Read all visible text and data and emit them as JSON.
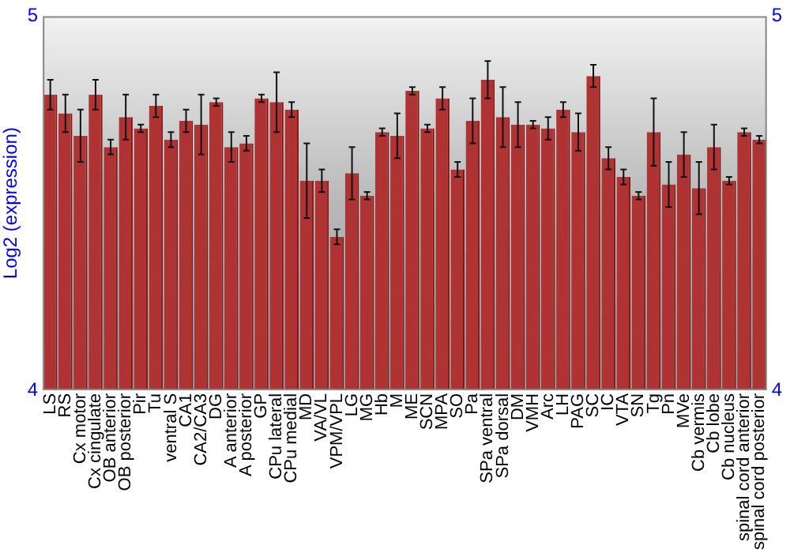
{
  "chart_data": {
    "type": "bar",
    "ylabel": "Log2 (expression)",
    "categories": [
      "LS",
      "RS",
      "Cx motor",
      "Cx cingulate",
      "OB anterior",
      "OB posterior",
      "Pir",
      "Tu",
      "ventral S",
      "CA1",
      "CA2/CA3",
      "DG",
      "A anterior",
      "A posterior",
      "GP",
      "CPu lateral",
      "CPu medial",
      "MD",
      "VA/VL",
      "VPM/VPL",
      "LG",
      "MG",
      "Hb",
      "M",
      "ME",
      "SCN",
      "MPA",
      "SO",
      "Pa",
      "SPa ventral",
      "SPa dorsal",
      "DM",
      "VMH",
      "Arc",
      "LH",
      "PAG",
      "SC",
      "IC",
      "VTA",
      "SN",
      "Tg",
      "Pn",
      "MVe",
      "Cb vermis",
      "Cb lobe",
      "Cb nucleus",
      "spinal cord anterior",
      "spinal cord posterior"
    ],
    "values": [
      4.79,
      4.74,
      4.68,
      4.79,
      4.65,
      4.73,
      4.7,
      4.76,
      4.67,
      4.72,
      4.71,
      4.77,
      4.65,
      4.66,
      4.78,
      4.77,
      4.75,
      4.56,
      4.56,
      4.41,
      4.58,
      4.52,
      4.69,
      4.68,
      4.8,
      4.7,
      4.78,
      4.59,
      4.72,
      4.83,
      4.73,
      4.71,
      4.71,
      4.7,
      4.75,
      4.69,
      4.84,
      4.62,
      4.57,
      4.52,
      4.69,
      4.55,
      4.63,
      4.54,
      4.65,
      4.56,
      4.69,
      4.67
    ],
    "errors": [
      0.04,
      0.05,
      0.07,
      0.04,
      0.02,
      0.06,
      0.01,
      0.03,
      0.02,
      0.03,
      0.08,
      0.01,
      0.04,
      0.02,
      0.01,
      0.08,
      0.02,
      0.1,
      0.03,
      0.02,
      0.07,
      0.01,
      0.01,
      0.06,
      0.01,
      0.01,
      0.03,
      0.02,
      0.06,
      0.05,
      0.08,
      0.06,
      0.01,
      0.03,
      0.02,
      0.05,
      0.03,
      0.03,
      0.02,
      0.01,
      0.09,
      0.06,
      0.06,
      0.07,
      0.06,
      0.01,
      0.01,
      0.01
    ],
    "color": "#b03333",
    "ylim": [
      4,
      5
    ],
    "yticks": [
      4,
      5
    ],
    "y2lim": [
      4,
      5
    ],
    "y2ticks": [
      4,
      5
    ],
    "grid": false,
    "legend": false
  }
}
